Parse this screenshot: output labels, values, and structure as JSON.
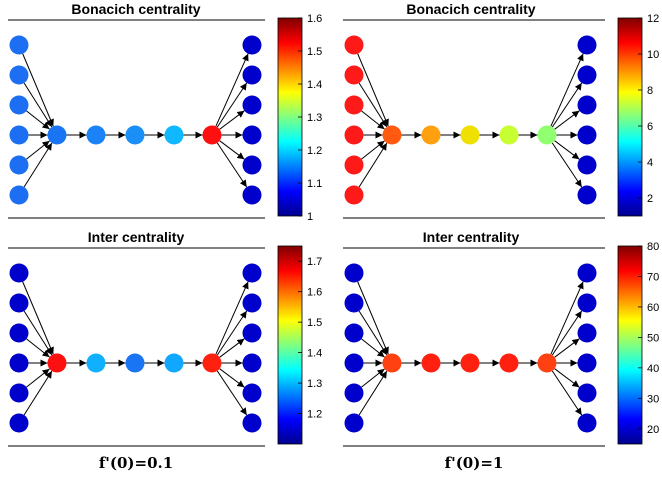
{
  "colormap": [
    "#00008f",
    "#0000ff",
    "#0080ff",
    "#00ffff",
    "#80ff80",
    "#ffff00",
    "#ff8000",
    "#ff0000",
    "#800000"
  ],
  "edge_color": "#000000",
  "graph": {
    "left_nodes": 6,
    "chain_nodes": 5,
    "right_nodes": 6
  },
  "panels": [
    {
      "id": "tl",
      "title": "Bonacich centrality",
      "cbar": {
        "min": 1,
        "max": 1.6,
        "ticks": [
          "1",
          "1.1",
          "1.2",
          "1.3",
          "1.4",
          "1.5",
          "1.6"
        ]
      },
      "left_color": "#1c6ff2",
      "chain_colors": [
        "#1a75f5",
        "#1b82f7",
        "#1a8ff8",
        "#10b8ff",
        "#ff1010"
      ],
      "right_color": "#0000cc"
    },
    {
      "id": "tr",
      "title": "Bonacich centrality",
      "cbar": {
        "min": 1,
        "max": 12,
        "ticks": [
          "2",
          "4",
          "6",
          "8",
          "10",
          "12"
        ]
      },
      "left_color": "#ff1a1a",
      "chain_colors": [
        "#ff5a10",
        "#ffa010",
        "#f0e000",
        "#c8ff30",
        "#90ff70"
      ],
      "right_color": "#0000cc"
    },
    {
      "id": "bl",
      "title": "Inter centrality",
      "cbar": {
        "min": 1.1,
        "max": 1.75,
        "ticks": [
          "1.2",
          "1.3",
          "1.4",
          "1.5",
          "1.6",
          "1.7"
        ]
      },
      "left_color": "#0000cc",
      "chain_colors": [
        "#ff1010",
        "#10b0ff",
        "#1a75f5",
        "#10a8ff",
        "#ff2010"
      ],
      "right_color": "#0000cc"
    },
    {
      "id": "br",
      "title": "Inter centrality",
      "cbar": {
        "min": 15,
        "max": 80,
        "ticks": [
          "20",
          "30",
          "40",
          "50",
          "60",
          "70",
          "80"
        ]
      },
      "left_color": "#0000cc",
      "chain_colors": [
        "#ff4010",
        "#ff2010",
        "#ff2010",
        "#ff2010",
        "#ff4010"
      ],
      "right_color": "#0000cc"
    }
  ],
  "captions": {
    "left": "f'(0)=0.1",
    "right": "f'(0)=1"
  }
}
